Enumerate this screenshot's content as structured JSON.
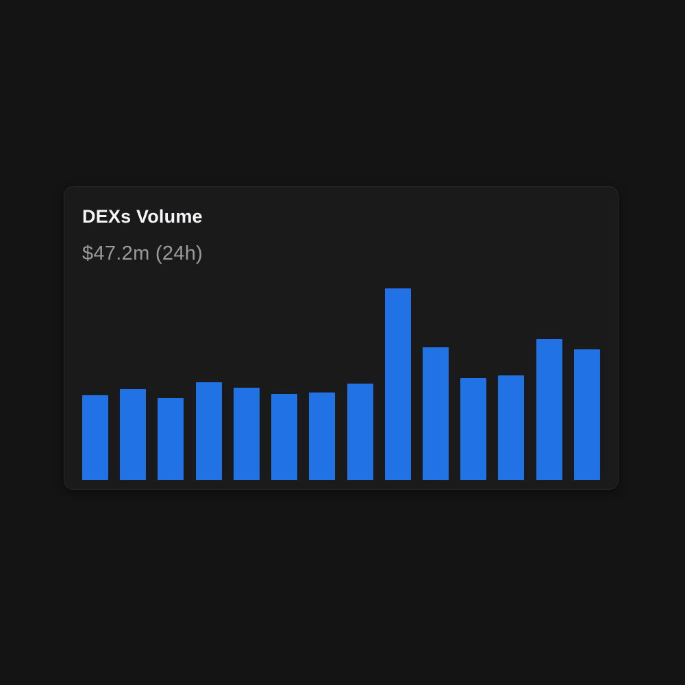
{
  "card": {
    "title": "DEXs Volume",
    "subtitle": "$47.2m (24h)"
  },
  "colors": {
    "page_background": "#141414",
    "card_background": "#1a1a1b",
    "card_border": "#2a2a2c",
    "title_text": "#f5f5f7",
    "subtitle_text": "#9b9b9b",
    "bar_blue": "#2172e5"
  },
  "chart_data": {
    "type": "bar",
    "title": "DEXs Volume",
    "subtitle": "$47.2m (24h)",
    "unit": "$m (estimated from bar heights, last bar = 47.2)",
    "values": [
      30.8,
      33.0,
      29.8,
      35.5,
      33.5,
      31.3,
      31.8,
      34.8,
      69.3,
      47.9,
      37.0,
      37.8,
      50.9,
      47.2
    ],
    "ylim": [
      0,
      69.3
    ],
    "bar_color": "#2172e5",
    "grid": false,
    "axes_visible": false,
    "legend": false,
    "categories": []
  }
}
